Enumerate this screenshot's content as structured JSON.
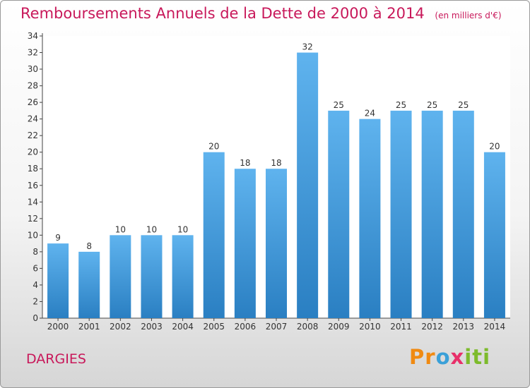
{
  "header": {
    "title": "Remboursements Annuels de la Dette de 2000 à 2014",
    "unit": "(en milliers d'€)"
  },
  "footer": {
    "commune": "DARGIES",
    "logo_text": "Proxiti",
    "logo_letters": [
      "P",
      "r",
      "o",
      "x",
      "i",
      "t",
      "i"
    ]
  },
  "colors": {
    "bar_top": "#5fb3ee",
    "bar_bottom": "#2a7fc2",
    "title": "#c8185a"
  },
  "chart_data": {
    "type": "bar",
    "categories": [
      "2000",
      "2001",
      "2002",
      "2003",
      "2004",
      "2005",
      "2006",
      "2007",
      "2008",
      "2009",
      "2010",
      "2011",
      "2012",
      "2013",
      "2014"
    ],
    "values": [
      9,
      8,
      10,
      10,
      10,
      20,
      18,
      18,
      32,
      25,
      24,
      25,
      25,
      25,
      20
    ],
    "title": "Remboursements Annuels de la Dette de 2000 à 2014",
    "ylim": [
      0,
      34
    ],
    "yticks": [
      0,
      2,
      4,
      6,
      8,
      10,
      12,
      14,
      16,
      18,
      20,
      22,
      24,
      26,
      28,
      30,
      32,
      34
    ],
    "grid": false,
    "data_labels": true
  }
}
